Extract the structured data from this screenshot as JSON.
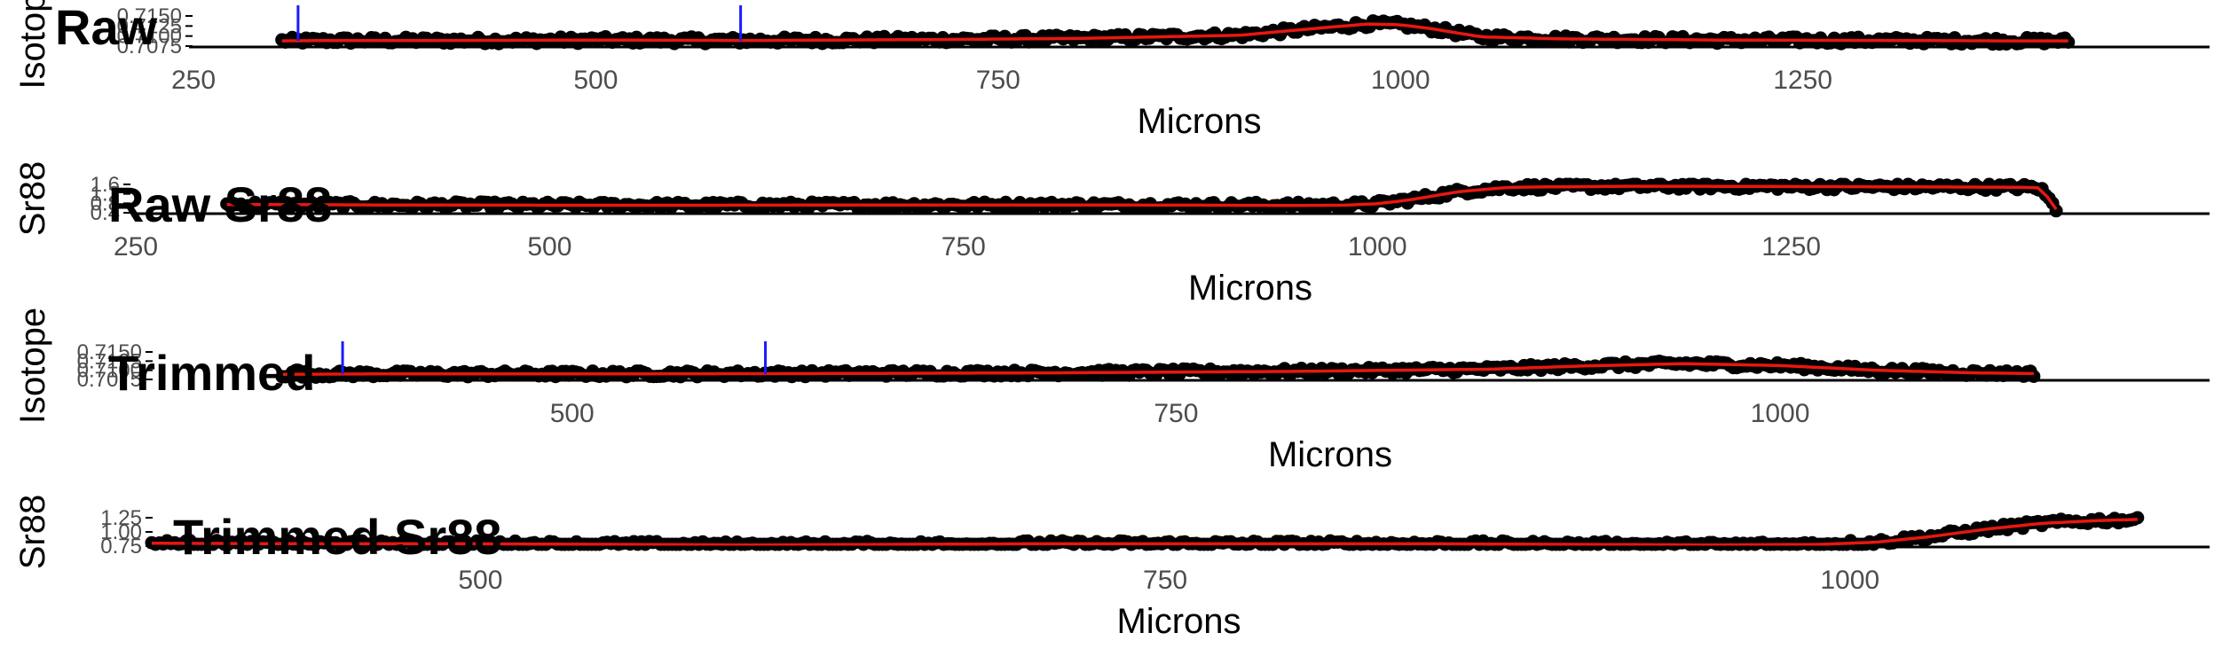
{
  "colors": {
    "points": "#000000",
    "smooth_line": "#e8170f",
    "marker": "#1a1aff",
    "axis": "#000000"
  },
  "chart_data": [
    {
      "type": "scatter",
      "title": "Raw",
      "xlabel": "Microns",
      "ylabel": "Isotope",
      "xlim": [
        250,
        1500
      ],
      "ylim": [
        0.7075,
        0.715
      ],
      "x_ticks": [
        "250",
        "500",
        "750",
        "1000",
        "1250"
      ],
      "y_ticks": [
        "0.7075",
        "0.7100",
        "0.7125",
        "0.7150"
      ],
      "markers": [
        315,
        590
      ],
      "x_start": 305,
      "x_end": 1415,
      "series": [
        {
          "x": [
            305,
            340,
            400,
            500,
            600,
            700,
            800,
            900,
            950,
            980,
            1000,
            1020,
            1050,
            1100,
            1200,
            1300,
            1380,
            1415
          ],
          "y": [
            0.7088,
            0.7089,
            0.7089,
            0.709,
            0.7089,
            0.7091,
            0.7094,
            0.7102,
            0.712,
            0.713,
            0.7128,
            0.7118,
            0.7098,
            0.7093,
            0.709,
            0.7089,
            0.7088,
            0.7088
          ]
        }
      ]
    },
    {
      "type": "scatter",
      "title": "Raw Sr88",
      "xlabel": "Microns",
      "ylabel": "Sr88",
      "xlim": [
        250,
        1500
      ],
      "ylim": [
        0.4,
        1.6
      ],
      "x_ticks": [
        "250",
        "500",
        "750",
        "1000",
        "1250"
      ],
      "y_ticks": [
        "0.4",
        "0.8",
        "1.2",
        "1.6"
      ],
      "markers": [],
      "x_start": 305,
      "x_end": 1410,
      "series": [
        {
          "x": [
            305,
            400,
            500,
            600,
            700,
            800,
            900,
            950,
            980,
            1000,
            1020,
            1050,
            1080,
            1150,
            1200,
            1300,
            1390,
            1400,
            1405,
            1410
          ],
          "y": [
            0.75,
            0.73,
            0.72,
            0.72,
            0.73,
            0.73,
            0.72,
            0.71,
            0.72,
            0.78,
            0.95,
            1.3,
            1.48,
            1.52,
            1.52,
            1.5,
            1.48,
            1.45,
            1.05,
            0.55
          ]
        }
      ]
    },
    {
      "type": "scatter",
      "title": "Trimmed",
      "xlabel": "Microns",
      "ylabel": "Isotope",
      "xlim": [
        380,
        1130
      ],
      "ylim": [
        0.7075,
        0.715
      ],
      "x_ticks": [
        "500",
        "750",
        "1000"
      ],
      "y_ticks": [
        "0.7075",
        "0.7100",
        "0.7125",
        "0.7150"
      ],
      "markers": [
        405,
        580
      ],
      "x_start": 380,
      "x_end": 1105,
      "series": [
        {
          "x": [
            380,
            420,
            500,
            600,
            700,
            800,
            880,
            920,
            960,
            1000,
            1040,
            1080,
            1105
          ],
          "y": [
            0.7089,
            0.709,
            0.709,
            0.7091,
            0.7093,
            0.7097,
            0.7103,
            0.7112,
            0.7118,
            0.7113,
            0.71,
            0.7093,
            0.7091
          ]
        }
      ]
    },
    {
      "type": "scatter",
      "title": "Trimmed Sr88",
      "xlabel": "Microns",
      "ylabel": "Sr88",
      "xlim": [
        380,
        1130
      ],
      "ylim": [
        0.75,
        1.25
      ],
      "x_ticks": [
        "500",
        "750",
        "1000"
      ],
      "y_ticks": [
        "0.75",
        "1.00",
        "1.25"
      ],
      "markers": [],
      "x_start": 380,
      "x_end": 1105,
      "series": [
        {
          "x": [
            380,
            450,
            500,
            550,
            600,
            650,
            700,
            750,
            800,
            850,
            900,
            950,
            990,
            1010,
            1030,
            1050,
            1070,
            1090,
            1105
          ],
          "y": [
            0.8,
            0.79,
            0.79,
            0.78,
            0.77,
            0.78,
            0.79,
            0.79,
            0.79,
            0.79,
            0.78,
            0.77,
            0.78,
            0.82,
            0.92,
            1.05,
            1.15,
            1.2,
            1.22
          ]
        }
      ]
    }
  ]
}
